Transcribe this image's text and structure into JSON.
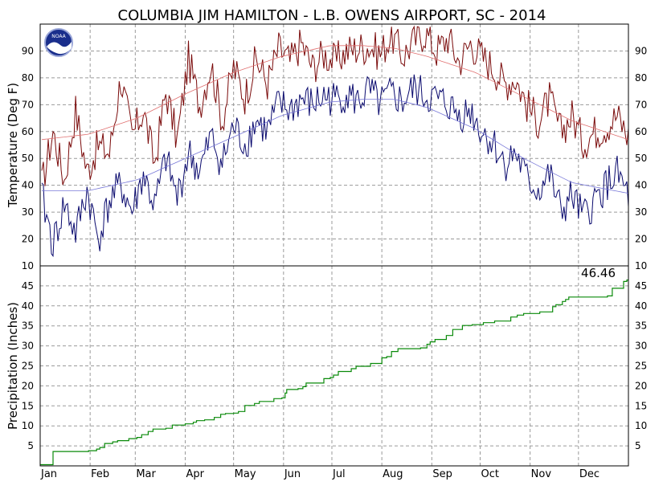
{
  "title": "COLUMBIA JIM HAMILTON - L.B. OWENS AIRPORT, SC - 2014",
  "logo_text": "NOAA",
  "colors": {
    "high": "#7a0a0a",
    "low": "#0a0a6e",
    "normal_high": "#e07070",
    "normal_low": "#7878d8",
    "precip": "#0a8a0a",
    "grid": "#9a9a9a"
  },
  "chart_data": [
    {
      "type": "line",
      "ylabel": "Temperature (Deg F)",
      "ylim": [
        10,
        100
      ],
      "yticks": [
        10,
        20,
        30,
        40,
        50,
        60,
        70,
        80,
        90
      ],
      "xlim": [
        0,
        365
      ],
      "grid": true,
      "series": [
        {
          "key": "daily_high",
          "style": "daily",
          "x": [
            1,
            8,
            15,
            22,
            29,
            36,
            43,
            50,
            57,
            64,
            71,
            78,
            85,
            92,
            99,
            106,
            113,
            120,
            127,
            134,
            141,
            148,
            155,
            162,
            169,
            176,
            183,
            190,
            197,
            204,
            211,
            218,
            225,
            232,
            239,
            246,
            253,
            260,
            267,
            274,
            281,
            288,
            295,
            302,
            309,
            316,
            323,
            330,
            337,
            344,
            351,
            358,
            365
          ],
          "values": [
            40,
            60,
            42,
            68,
            45,
            55,
            52,
            80,
            58,
            68,
            48,
            75,
            57,
            87,
            70,
            85,
            64,
            84,
            73,
            87,
            78,
            91,
            86,
            93,
            84,
            89,
            86,
            90,
            91,
            92,
            89,
            96,
            88,
            94,
            97,
            90,
            95,
            86,
            93,
            88,
            84,
            78,
            80,
            70,
            64,
            72,
            60,
            66,
            56,
            60,
            62,
            66,
            58
          ]
        },
        {
          "key": "daily_low",
          "style": "daily",
          "x": [
            1,
            8,
            15,
            22,
            29,
            36,
            43,
            50,
            57,
            64,
            71,
            78,
            85,
            92,
            99,
            106,
            113,
            120,
            127,
            134,
            141,
            148,
            155,
            162,
            169,
            176,
            183,
            190,
            197,
            204,
            211,
            218,
            225,
            232,
            239,
            246,
            253,
            260,
            267,
            274,
            281,
            288,
            295,
            302,
            309,
            316,
            323,
            330,
            337,
            344,
            351,
            358,
            365
          ],
          "values": [
            36,
            18,
            33,
            22,
            38,
            20,
            34,
            40,
            30,
            44,
            32,
            50,
            35,
            52,
            45,
            58,
            48,
            62,
            55,
            64,
            60,
            70,
            68,
            72,
            70,
            73,
            72,
            74,
            71,
            75,
            70,
            74,
            71,
            76,
            73,
            72,
            70,
            66,
            68,
            60,
            56,
            48,
            52,
            42,
            38,
            44,
            30,
            36,
            28,
            34,
            40,
            44,
            36
          ]
        },
        {
          "key": "normal_high",
          "style": "normal",
          "x": [
            1,
            30,
            60,
            90,
            120,
            150,
            180,
            200,
            220,
            240,
            270,
            300,
            330,
            365
          ],
          "values": [
            57,
            59,
            65,
            74,
            82,
            88,
            92,
            92,
            91,
            88,
            82,
            73,
            64,
            57
          ]
        },
        {
          "key": "normal_low",
          "style": "normal",
          "x": [
            1,
            30,
            60,
            90,
            120,
            150,
            180,
            200,
            220,
            240,
            270,
            300,
            330,
            365
          ],
          "values": [
            38,
            38,
            42,
            50,
            58,
            66,
            71,
            72,
            72,
            69,
            61,
            50,
            41,
            37
          ]
        }
      ]
    },
    {
      "type": "area",
      "ylabel": "Precipitation (Inches)",
      "ylim": [
        0,
        50
      ],
      "yticks": [
        5,
        10,
        15,
        20,
        25,
        30,
        35,
        40,
        45
      ],
      "xlim": [
        0,
        365
      ],
      "grid": true,
      "categories": [
        "Jan",
        "Feb",
        "Mar",
        "Apr",
        "May",
        "Jun",
        "Jul",
        "Aug",
        "Sep",
        "Oct",
        "Nov",
        "Dec"
      ],
      "total_label": "46.46",
      "series": [
        {
          "key": "cumulative_precip",
          "x": [
            0,
            7,
            8,
            30,
            35,
            37,
            40,
            45,
            48,
            55,
            60,
            63,
            67,
            70,
            78,
            82,
            90,
            95,
            97,
            102,
            108,
            112,
            115,
            120,
            123,
            127,
            133,
            136,
            145,
            150,
            152,
            153,
            160,
            163,
            165,
            176,
            180,
            182,
            185,
            193,
            196,
            205,
            212,
            215,
            218,
            222,
            236,
            240,
            242,
            245,
            252,
            256,
            262,
            268,
            275,
            282,
            292,
            296,
            300,
            310,
            318,
            320,
            324,
            326,
            328,
            352,
            353,
            355,
            362,
            364
          ],
          "values": [
            0.3,
            0.3,
            3.6,
            3.8,
            4.2,
            4.6,
            5.6,
            6.0,
            6.3,
            6.8,
            7.1,
            7.8,
            8.6,
            9.2,
            9.4,
            10.2,
            10.5,
            10.9,
            11.3,
            11.5,
            12.1,
            12.9,
            13.1,
            13.2,
            13.6,
            15.1,
            15.6,
            16.1,
            16.8,
            17.0,
            18.2,
            19.1,
            19.3,
            19.8,
            20.7,
            21.8,
            22.1,
            22.7,
            23.6,
            24.3,
            24.9,
            25.6,
            27.0,
            27.3,
            28.6,
            29.3,
            29.5,
            30.4,
            31.0,
            31.6,
            32.6,
            34.1,
            35.1,
            35.3,
            35.8,
            36.2,
            37.2,
            37.7,
            38.1,
            38.5,
            39.8,
            40.3,
            41.1,
            41.6,
            42.2,
            42.5,
            42.5,
            44.4,
            46.1,
            46.46
          ]
        }
      ]
    }
  ]
}
